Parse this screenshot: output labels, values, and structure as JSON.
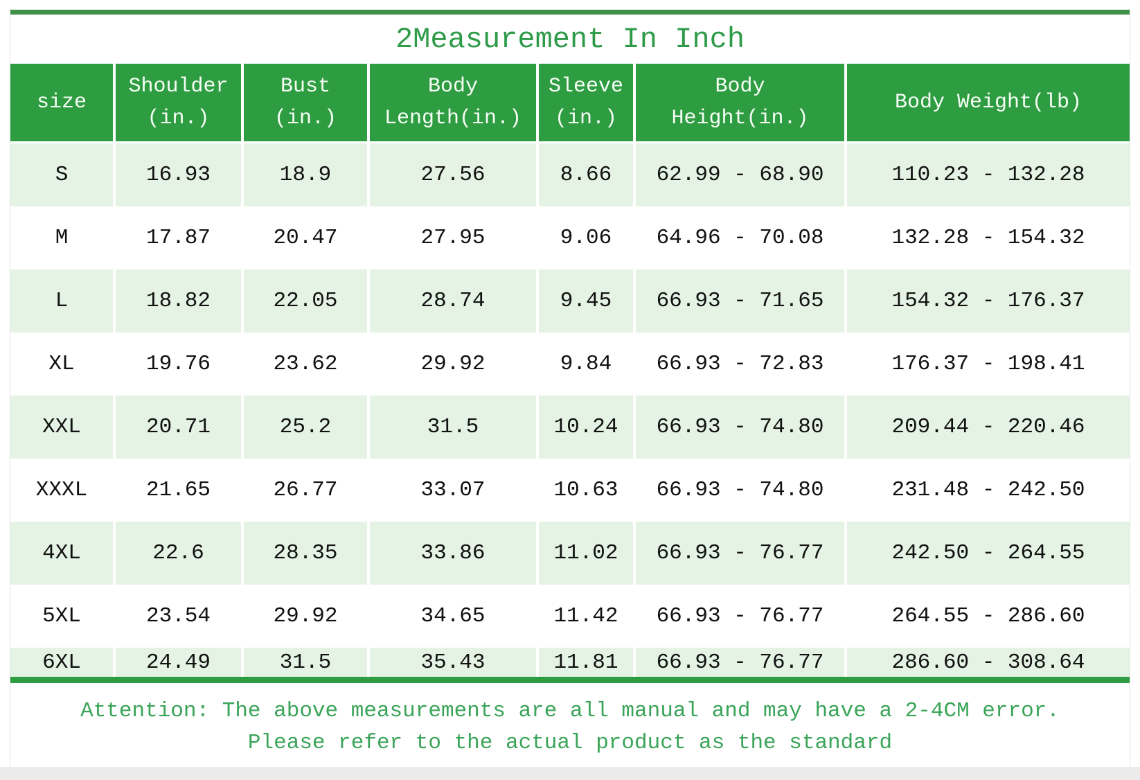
{
  "title": "2Measurement In Inch",
  "colors": {
    "header_green": "#2e9c40",
    "accent_bar_green": "#3d9149",
    "title_green": "#2e9b49",
    "note_green": "#3aa458",
    "alt_row_green": "#e4f3e3",
    "header_text": "#f6fef6"
  },
  "chart_data": {
    "type": "table",
    "title": "2Measurement In Inch",
    "column_keys": [
      "size",
      "shoulder",
      "bust",
      "body_length",
      "sleeve",
      "body_height",
      "body_weight"
    ],
    "columns": [
      "size",
      "Shoulder\n(in.)",
      "Bust\n(in.)",
      "Body\nLength(in.)",
      "Sleeve\n(in.)",
      "Body\nHeight(in.)",
      "Body Weight(lb)"
    ],
    "rows": [
      [
        "S",
        "16.93",
        "18.9",
        "27.56",
        "8.66",
        "62.99 - 68.90",
        "110.23 - 132.28"
      ],
      [
        "M",
        "17.87",
        "20.47",
        "27.95",
        "9.06",
        "64.96 - 70.08",
        "132.28 - 154.32"
      ],
      [
        "L",
        "18.82",
        "22.05",
        "28.74",
        "9.45",
        "66.93 - 71.65",
        "154.32 - 176.37"
      ],
      [
        "XL",
        "19.76",
        "23.62",
        "29.92",
        "9.84",
        "66.93 - 72.83",
        "176.37 - 198.41"
      ],
      [
        "XXL",
        "20.71",
        "25.2",
        "31.5",
        "10.24",
        "66.93 - 74.80",
        "209.44 - 220.46"
      ],
      [
        "XXXL",
        "21.65",
        "26.77",
        "33.07",
        "10.63",
        "66.93 - 74.80",
        "231.48 - 242.50"
      ],
      [
        "4XL",
        "22.6",
        "28.35",
        "33.86",
        "11.02",
        "66.93 - 76.77",
        "242.50 - 264.55"
      ],
      [
        "5XL",
        "23.54",
        "29.92",
        "34.65",
        "11.42",
        "66.93 - 76.77",
        "264.55 - 286.60"
      ],
      [
        "6XL",
        "24.49",
        "31.5",
        "35.43",
        "11.81",
        "66.93 - 76.77",
        "286.60 - 308.64"
      ]
    ]
  },
  "note": {
    "line1": "Attention: The above measurements are all manual and may have a 2-4CM error.",
    "line2": "Please refer to the actual product as the standard"
  }
}
